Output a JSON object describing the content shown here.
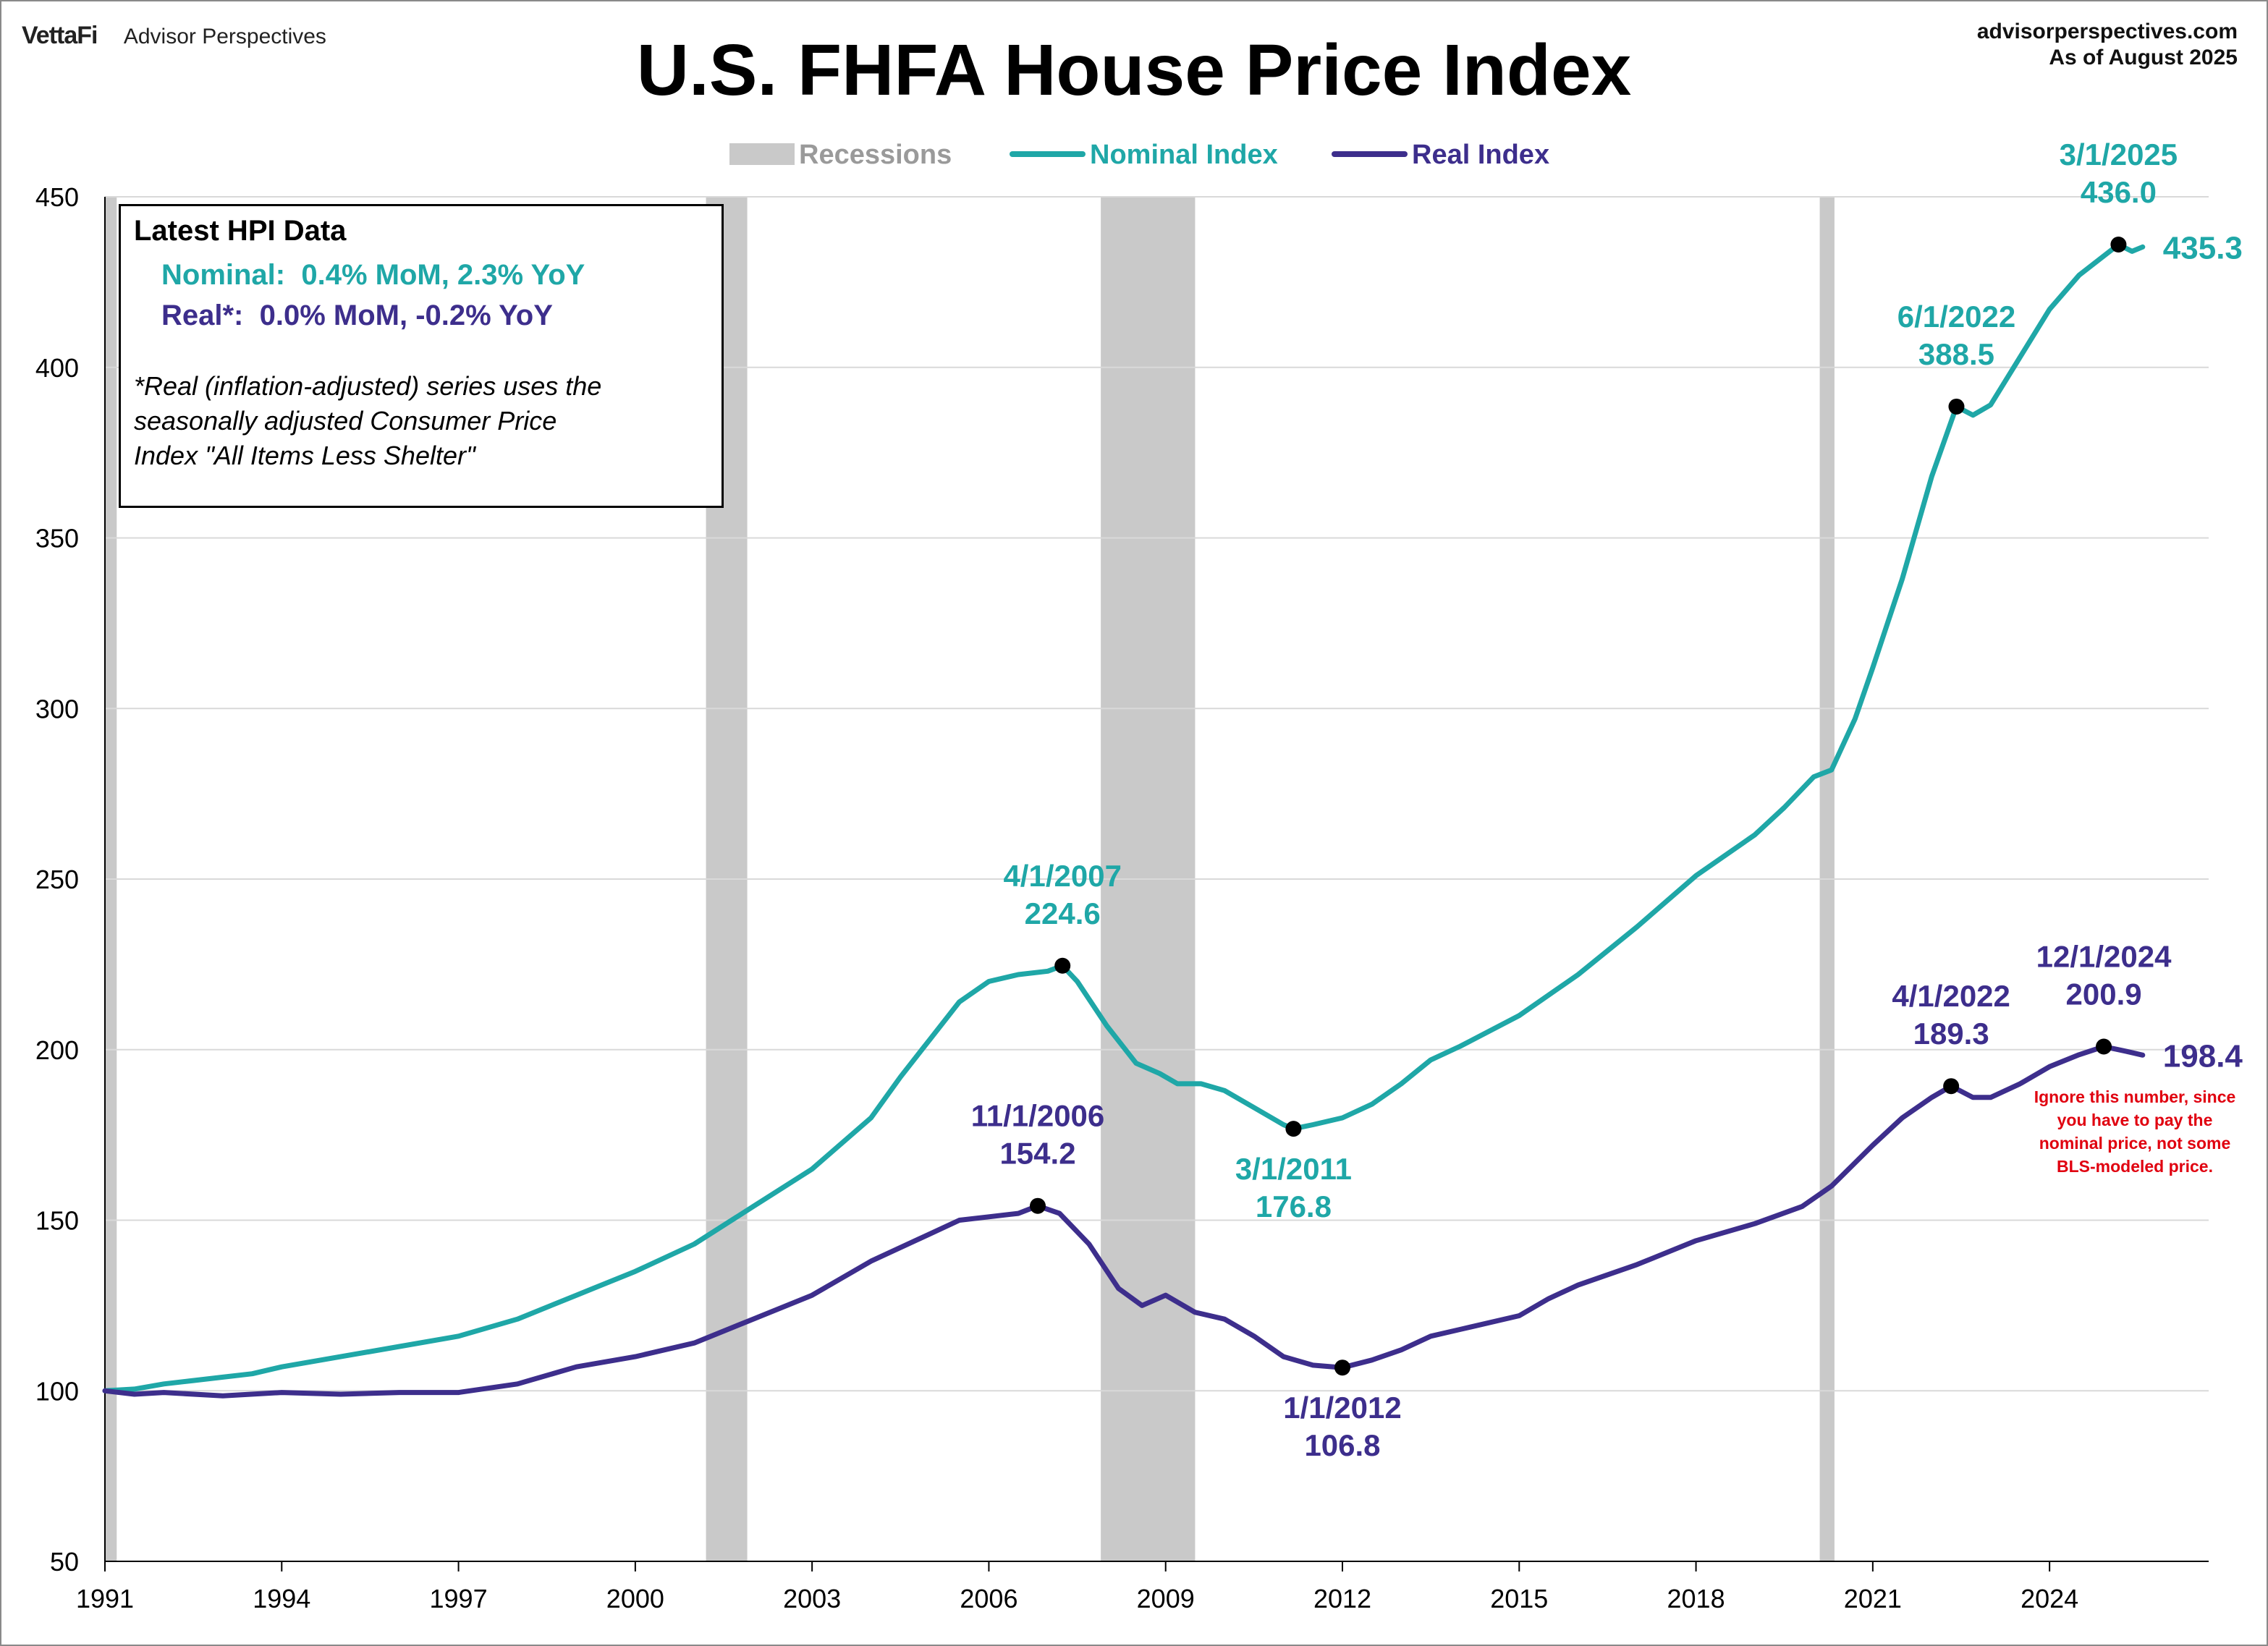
{
  "header": {
    "brand_logo": "VettaFi",
    "brand_name": "Advisor Perspectives",
    "source_site": "advisorperspectives.com",
    "as_of": "As of August 2025"
  },
  "info_box": {
    "title": "Latest HPI Data",
    "nominal_line": "Nominal:  0.4% MoM, 2.3% YoY",
    "real_line": "Real*:  0.0% MoM, -0.2% YoY",
    "note_line1": "*Real (inflation-adjusted) series uses the",
    "note_line2": "seasonally adjusted Consumer Price",
    "note_line3": "Index \"All Items Less Shelter\""
  },
  "warning_note": {
    "line1": "Ignore this number, since",
    "line2": "you have to pay the",
    "line3": "nominal price, not some",
    "line4": "BLS-modeled price."
  },
  "colors": {
    "nominal": "#1fa7a7",
    "real": "#3d2e8c",
    "recession": "#c9c9c9",
    "grid": "#d9d9d9",
    "warning": "#e0000f"
  },
  "chart_data": {
    "type": "line",
    "title": "U.S. FHFA House Price Index",
    "xlabel": "",
    "ylabel": "",
    "xlim": [
      1991.0,
      2026.7
    ],
    "ylim": [
      50,
      450
    ],
    "x_ticks": [
      "1991",
      "1994",
      "1997",
      "2000",
      "2003",
      "2006",
      "2009",
      "2012",
      "2015",
      "2018",
      "2021",
      "2024"
    ],
    "y_ticks": [
      50,
      100,
      150,
      200,
      250,
      300,
      350,
      400,
      450
    ],
    "grid": true,
    "legend_position": "top-center",
    "legend": [
      "Recessions",
      "Nominal Index",
      "Real Index"
    ],
    "recessions": [
      {
        "start": 1991.0,
        "end": 1991.2
      },
      {
        "start": 2001.2,
        "end": 2001.9
      },
      {
        "start": 2007.9,
        "end": 2009.5
      },
      {
        "start": 2020.1,
        "end": 2020.35
      }
    ],
    "series": [
      {
        "name": "Nominal Index",
        "points": [
          [
            1991.0,
            100
          ],
          [
            1991.5,
            100.5
          ],
          [
            1992.0,
            102
          ],
          [
            1992.5,
            103
          ],
          [
            1993.0,
            104
          ],
          [
            1993.5,
            105
          ],
          [
            1994.0,
            107
          ],
          [
            1995.0,
            110
          ],
          [
            1996.0,
            113
          ],
          [
            1997.0,
            116
          ],
          [
            1998.0,
            121
          ],
          [
            1999.0,
            128
          ],
          [
            2000.0,
            135
          ],
          [
            2001.0,
            143
          ],
          [
            2002.0,
            154
          ],
          [
            2003.0,
            165
          ],
          [
            2004.0,
            180
          ],
          [
            2004.5,
            192
          ],
          [
            2005.0,
            203
          ],
          [
            2005.5,
            214
          ],
          [
            2006.0,
            220
          ],
          [
            2006.5,
            222
          ],
          [
            2007.0,
            223
          ],
          [
            2007.25,
            224.6
          ],
          [
            2007.5,
            220
          ],
          [
            2008.0,
            207
          ],
          [
            2008.5,
            196
          ],
          [
            2008.9,
            193
          ],
          [
            2009.2,
            190
          ],
          [
            2009.6,
            190
          ],
          [
            2010.0,
            188
          ],
          [
            2010.5,
            183
          ],
          [
            2011.0,
            178
          ],
          [
            2011.17,
            176.8
          ],
          [
            2011.5,
            178
          ],
          [
            2012.0,
            180
          ],
          [
            2012.5,
            184
          ],
          [
            2013.0,
            190
          ],
          [
            2013.5,
            197
          ],
          [
            2014.0,
            201
          ],
          [
            2015.0,
            210
          ],
          [
            2016.0,
            222
          ],
          [
            2017.0,
            236
          ],
          [
            2018.0,
            251
          ],
          [
            2019.0,
            263
          ],
          [
            2019.5,
            271
          ],
          [
            2020.0,
            280
          ],
          [
            2020.3,
            282
          ],
          [
            2020.7,
            297
          ],
          [
            2021.0,
            312
          ],
          [
            2021.5,
            338
          ],
          [
            2022.0,
            368
          ],
          [
            2022.42,
            388.5
          ],
          [
            2022.7,
            386
          ],
          [
            2023.0,
            389
          ],
          [
            2023.5,
            403
          ],
          [
            2024.0,
            417
          ],
          [
            2024.5,
            427
          ],
          [
            2025.17,
            436.0
          ],
          [
            2025.4,
            434
          ],
          [
            2025.58,
            435.3
          ]
        ]
      },
      {
        "name": "Real Index",
        "points": [
          [
            1991.0,
            100
          ],
          [
            1991.5,
            99
          ],
          [
            1992.0,
            99.5
          ],
          [
            1993.0,
            98.5
          ],
          [
            1994.0,
            99.5
          ],
          [
            1995.0,
            99
          ],
          [
            1996.0,
            99.5
          ],
          [
            1997.0,
            99.5
          ],
          [
            1998.0,
            102
          ],
          [
            1999.0,
            107
          ],
          [
            2000.0,
            110
          ],
          [
            2001.0,
            114
          ],
          [
            2002.0,
            121
          ],
          [
            2003.0,
            128
          ],
          [
            2004.0,
            138
          ],
          [
            2005.0,
            146
          ],
          [
            2005.5,
            150
          ],
          [
            2006.0,
            151
          ],
          [
            2006.5,
            152
          ],
          [
            2006.83,
            154.2
          ],
          [
            2007.2,
            152
          ],
          [
            2007.7,
            143
          ],
          [
            2008.2,
            130
          ],
          [
            2008.6,
            125
          ],
          [
            2009.0,
            128
          ],
          [
            2009.5,
            123
          ],
          [
            2010.0,
            121
          ],
          [
            2010.5,
            116
          ],
          [
            2011.0,
            110
          ],
          [
            2011.5,
            107.5
          ],
          [
            2012.0,
            106.8
          ],
          [
            2012.5,
            109
          ],
          [
            2013.0,
            112
          ],
          [
            2013.5,
            116
          ],
          [
            2014.0,
            118
          ],
          [
            2015.0,
            122
          ],
          [
            2015.5,
            127
          ],
          [
            2016.0,
            131
          ],
          [
            2017.0,
            137
          ],
          [
            2018.0,
            144
          ],
          [
            2019.0,
            149
          ],
          [
            2019.8,
            154
          ],
          [
            2020.3,
            160
          ],
          [
            2021.0,
            172
          ],
          [
            2021.5,
            180
          ],
          [
            2022.0,
            186
          ],
          [
            2022.33,
            189.3
          ],
          [
            2022.7,
            186
          ],
          [
            2023.0,
            186
          ],
          [
            2023.5,
            190
          ],
          [
            2024.0,
            195
          ],
          [
            2024.5,
            198.5
          ],
          [
            2024.92,
            200.9
          ],
          [
            2025.3,
            199.5
          ],
          [
            2025.58,
            198.4
          ]
        ]
      }
    ],
    "annotations": [
      {
        "series": 0,
        "x": 2007.25,
        "y": 224.6,
        "date": "4/1/2007",
        "value": "224.6"
      },
      {
        "series": 0,
        "x": 2011.17,
        "y": 176.8,
        "date": "3/1/2011",
        "value": "176.8"
      },
      {
        "series": 0,
        "x": 2022.42,
        "y": 388.5,
        "date": "6/1/2022",
        "value": "388.5"
      },
      {
        "series": 0,
        "x": 2025.17,
        "y": 436.0,
        "date": "3/1/2025",
        "value": "436.0"
      },
      {
        "series": 1,
        "x": 2006.83,
        "y": 154.2,
        "date": "11/1/2006",
        "value": "154.2"
      },
      {
        "series": 1,
        "x": 2012.0,
        "y": 106.8,
        "date": "1/1/2012",
        "value": "106.8"
      },
      {
        "series": 1,
        "x": 2022.33,
        "y": 189.3,
        "date": "4/1/2022",
        "value": "189.3"
      },
      {
        "series": 1,
        "x": 2024.92,
        "y": 200.9,
        "date": "12/1/2024",
        "value": "200.9"
      }
    ],
    "last_values": [
      {
        "series": 0,
        "x": 2025.58,
        "y": 435.3,
        "label": "435.3"
      },
      {
        "series": 1,
        "x": 2025.58,
        "y": 198.4,
        "label": "198.4"
      }
    ]
  }
}
